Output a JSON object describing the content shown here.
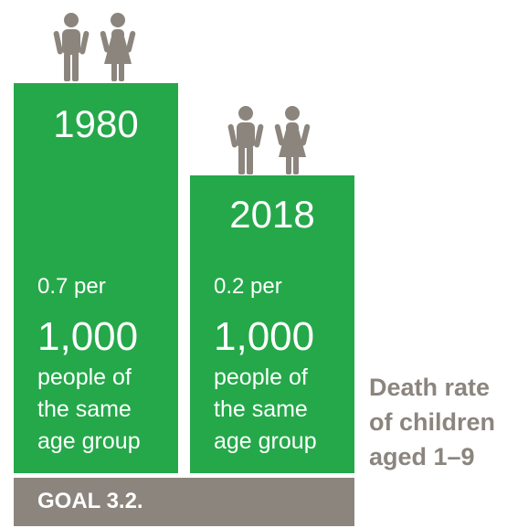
{
  "chart_data": {
    "type": "bar",
    "categories": [
      "1980",
      "2018"
    ],
    "values": [
      0.7,
      0.2
    ],
    "unit_prefix": "per",
    "unit_big": "1,000",
    "unit_suffix": "people of\nthe same\nage group",
    "title": "Death rate\nof children\naged 1–9",
    "footer": "GOAL 3.2."
  },
  "colors": {
    "bar": "#25a84a",
    "footer": "#8b857e",
    "icon": "#8b857e"
  },
  "icons": [
    "boy-icon",
    "girl-icon"
  ]
}
